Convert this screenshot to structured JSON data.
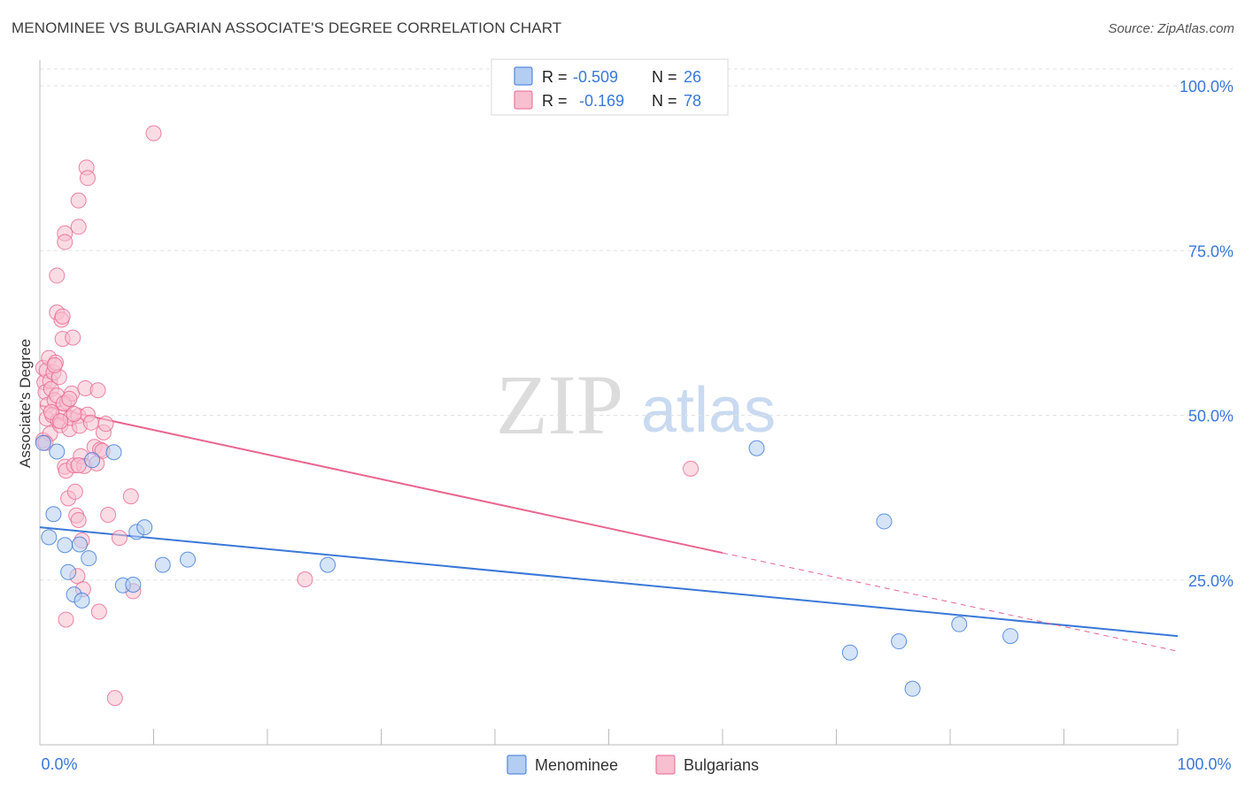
{
  "title": "MENOMINEE VS BULGARIAN ASSOCIATE'S DEGREE CORRELATION CHART",
  "source": "Source: ZipAtlas.com",
  "watermark": {
    "zip": "ZIP",
    "atlas": "atlas"
  },
  "chart_data": {
    "type": "scatter",
    "title": "MENOMINEE VS BULGARIAN ASSOCIATE'S DEGREE CORRELATION CHART",
    "xlabel": "",
    "ylabel": "Associate's Degree",
    "xlim": [
      0,
      100
    ],
    "ylim": [
      0,
      100
    ],
    "x_tick_labels": {
      "min": "0.0%",
      "max": "100.0%"
    },
    "y_ticks": [
      25,
      50,
      75,
      100
    ],
    "y_tick_labels": [
      "25.0%",
      "50.0%",
      "75.0%",
      "100.0%"
    ],
    "grid": true,
    "stats_legend": [
      {
        "r_label": "R =",
        "r_value": "-0.509",
        "n_label": "N =",
        "n_value": "26"
      },
      {
        "r_label": "R =",
        "r_value": "-0.169",
        "n_label": "N =",
        "n_value": "78"
      }
    ],
    "series": [
      {
        "name": "Menominee",
        "color": "#3a78d8",
        "fill": "#b4cdf2",
        "trend": {
          "x": [
            0,
            100
          ],
          "y": [
            33.0,
            16.5
          ],
          "dashed_from": null
        },
        "points": [
          [
            0.3,
            45.8
          ],
          [
            1.2,
            35.0
          ],
          [
            0.8,
            31.5
          ],
          [
            1.5,
            44.5
          ],
          [
            2.2,
            30.3
          ],
          [
            2.5,
            26.2
          ],
          [
            3.0,
            22.8
          ],
          [
            3.5,
            30.4
          ],
          [
            3.7,
            21.9
          ],
          [
            4.3,
            28.3
          ],
          [
            4.6,
            43.2
          ],
          [
            6.5,
            44.4
          ],
          [
            7.3,
            24.2
          ],
          [
            8.2,
            24.3
          ],
          [
            8.5,
            32.3
          ],
          [
            9.2,
            33.0
          ],
          [
            10.8,
            27.3
          ],
          [
            13.0,
            28.1
          ],
          [
            25.3,
            27.3
          ],
          [
            63.0,
            45.0
          ],
          [
            71.2,
            14.0
          ],
          [
            74.2,
            33.9
          ],
          [
            75.5,
            15.7
          ],
          [
            76.7,
            8.5
          ],
          [
            80.8,
            18.3
          ],
          [
            85.3,
            16.5
          ]
        ]
      },
      {
        "name": "Bulgarians",
        "color": "#e8668f",
        "fill": "#f7bfd0",
        "trend": {
          "x": [
            0,
            100
          ],
          "y": [
            51.5,
            14.2
          ],
          "dashed_from": 60
        },
        "points": [
          [
            0.3,
            57.2
          ],
          [
            0.4,
            55.0
          ],
          [
            0.5,
            53.5
          ],
          [
            0.6,
            56.8
          ],
          [
            0.6,
            49.5
          ],
          [
            0.7,
            51.6
          ],
          [
            0.8,
            58.7
          ],
          [
            0.9,
            55.2
          ],
          [
            1.0,
            54.0
          ],
          [
            1.1,
            50.0
          ],
          [
            0.3,
            46.2
          ],
          [
            0.9,
            47.2
          ],
          [
            1.2,
            56.5
          ],
          [
            1.3,
            52.3
          ],
          [
            1.4,
            58.0
          ],
          [
            1.5,
            53.0
          ],
          [
            1.6,
            49.2
          ],
          [
            1.7,
            55.8
          ],
          [
            1.5,
            65.6
          ],
          [
            1.5,
            71.2
          ],
          [
            1.8,
            48.5
          ],
          [
            1.9,
            64.5
          ],
          [
            2.0,
            65.0
          ],
          [
            2.0,
            61.6
          ],
          [
            2.1,
            50.4
          ],
          [
            2.2,
            42.2
          ],
          [
            2.3,
            41.6
          ],
          [
            2.4,
            52.0
          ],
          [
            2.5,
            37.4
          ],
          [
            2.6,
            47.9
          ],
          [
            2.7,
            49.6
          ],
          [
            2.8,
            53.3
          ],
          [
            2.2,
            77.6
          ],
          [
            2.2,
            76.3
          ],
          [
            2.3,
            19.0
          ],
          [
            2.9,
            61.8
          ],
          [
            3.0,
            42.4
          ],
          [
            3.1,
            38.4
          ],
          [
            3.2,
            34.8
          ],
          [
            3.3,
            25.6
          ],
          [
            3.4,
            49.9
          ],
          [
            3.5,
            48.4
          ],
          [
            3.6,
            43.8
          ],
          [
            3.7,
            31.0
          ],
          [
            3.8,
            23.6
          ],
          [
            3.9,
            42.3
          ],
          [
            3.4,
            82.6
          ],
          [
            3.4,
            78.6
          ],
          [
            3.4,
            34.1
          ],
          [
            3.4,
            42.4
          ],
          [
            4.0,
            54.1
          ],
          [
            4.2,
            50.1
          ],
          [
            4.1,
            87.6
          ],
          [
            4.2,
            86.0
          ],
          [
            4.5,
            48.9
          ],
          [
            4.8,
            45.2
          ],
          [
            5.0,
            42.7
          ],
          [
            5.1,
            53.8
          ],
          [
            5.2,
            20.2
          ],
          [
            5.3,
            44.8
          ],
          [
            5.5,
            44.6
          ],
          [
            5.6,
            47.4
          ],
          [
            5.8,
            48.7
          ],
          [
            6.0,
            34.9
          ],
          [
            6.6,
            7.1
          ],
          [
            7.0,
            31.4
          ],
          [
            8.0,
            37.7
          ],
          [
            8.2,
            23.3
          ],
          [
            10.0,
            92.8
          ],
          [
            23.3,
            25.1
          ],
          [
            57.2,
            41.9
          ],
          [
            0.5,
            45.8
          ],
          [
            1.0,
            50.5
          ],
          [
            1.3,
            57.6
          ],
          [
            2.1,
            51.8
          ],
          [
            2.6,
            52.5
          ],
          [
            3.0,
            50.2
          ],
          [
            1.8,
            49.1
          ]
        ]
      }
    ]
  }
}
